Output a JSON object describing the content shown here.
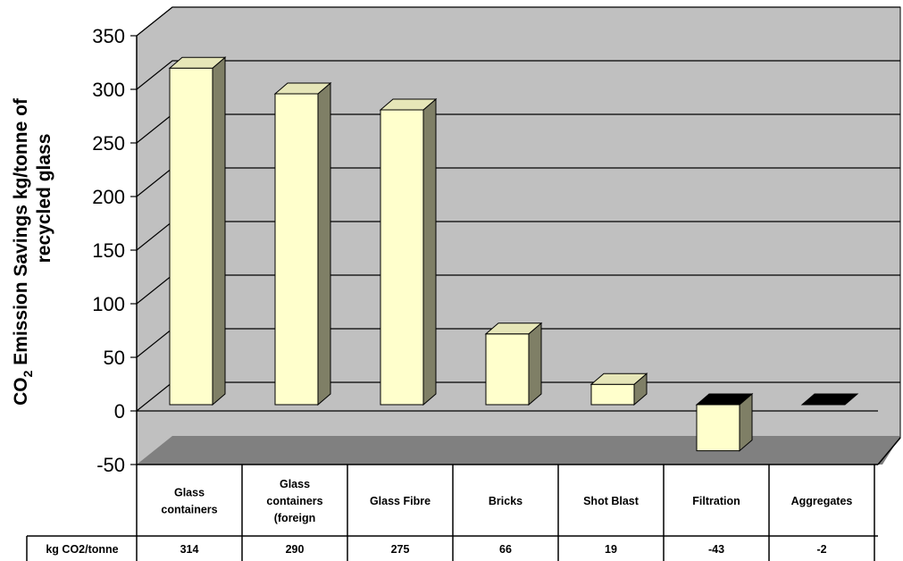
{
  "chart_data": {
    "type": "bar",
    "ylabel": {
      "prefix": "CO",
      "subscript": "2",
      "line1_rest": " Emission Savings kg/tonne of",
      "line2": "recycled glass"
    },
    "yticks": [
      "350",
      "300",
      "250",
      "200",
      "150",
      "100",
      "50",
      "0",
      "-50"
    ],
    "ylim": [
      -50,
      350
    ],
    "grid": true,
    "categories": [
      [
        "Glass",
        "containers"
      ],
      [
        "Glass",
        "containers",
        "(foreign"
      ],
      [
        "Glass Fibre"
      ],
      [
        "Bricks"
      ],
      [
        "Shot Blast"
      ],
      [
        "Filtration"
      ],
      [
        "Aggregates"
      ]
    ],
    "table_row_label": "kg CO2/tonne",
    "value_labels": [
      "314",
      "290",
      "275",
      "66",
      "19",
      "-43",
      "-2"
    ],
    "values": [
      314,
      290,
      275,
      66,
      19,
      -43,
      -2
    ],
    "colors": {
      "bar_front": "#ffffcc",
      "bar_side": "#7f7f66",
      "bar_top": "#e6e6b8",
      "negative_top": "#000000",
      "wall": "#c0c0c0",
      "floor": "#808080",
      "outline": "#000000"
    }
  }
}
